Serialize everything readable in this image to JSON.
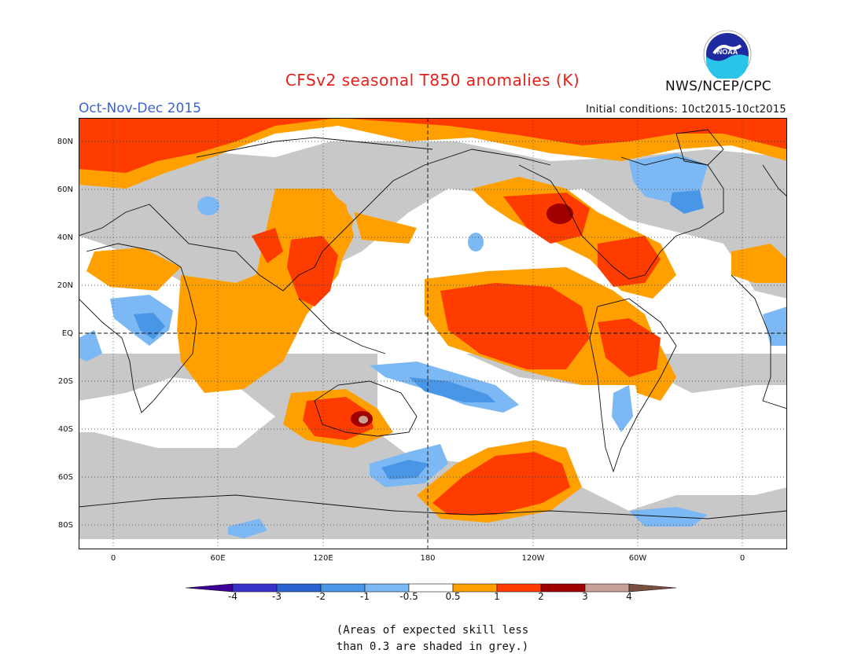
{
  "header": {
    "title": "CFSv2 seasonal T850 anomalies (K)",
    "period": "Oct-Nov-Dec 2015",
    "initial_conditions": "Initial conditions: 10ct2015-10ct2015",
    "agency": "NWS/NCEP/CPC",
    "logo_text": "NOAA"
  },
  "map": {
    "lat_labels": [
      "80N",
      "60N",
      "40N",
      "20N",
      "EQ",
      "20S",
      "40S",
      "60S",
      "80S"
    ],
    "lon_labels": [
      "0",
      "60E",
      "120E",
      "180",
      "120W",
      "60W",
      "0"
    ],
    "colors": {
      "grey_skill": "#c8c8c8",
      "w05": "#ffa000",
      "w1": "#ff3c00",
      "w2": "#a00000",
      "w3": "#c8a096",
      "c05": "#7cb8f4",
      "c1": "#4a96e6",
      "c2": "#2a64d2",
      "c3": "#3a32c8",
      "c4": "#3c0096"
    }
  },
  "colorbar": {
    "labels": [
      "-4",
      "-3",
      "-2",
      "-1",
      "-0.5",
      "0.5",
      "1",
      "2",
      "3",
      "4"
    ],
    "colors": [
      "#3c0096",
      "#3a32c8",
      "#2a64d2",
      "#4a96e6",
      "#7cb8f4",
      "#ffffff",
      "#ffa000",
      "#ff3c00",
      "#a00000",
      "#c8a096",
      "#7a5040"
    ]
  },
  "footnote": {
    "line1": "(Areas of expected skill less",
    "line2": "than 0.3 are shaded in grey.)"
  }
}
